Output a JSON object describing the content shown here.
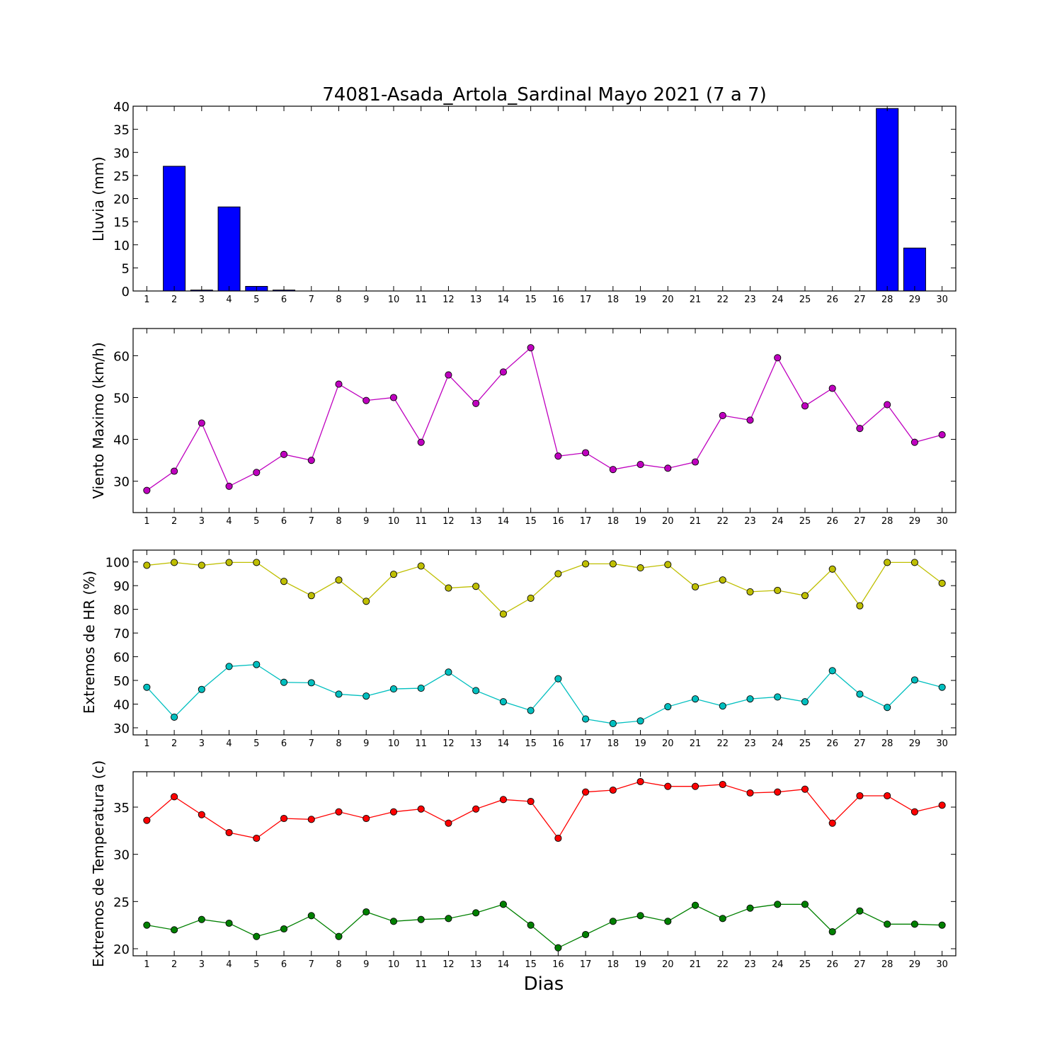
{
  "chart_data": [
    {
      "type": "bar",
      "title": "74081-Asada_Artola_Sardinal Mayo 2021  (7 a 7)",
      "ylabel": "Lluvia (mm)",
      "xlabel": "",
      "x": [
        1,
        2,
        3,
        4,
        5,
        6,
        7,
        8,
        9,
        10,
        11,
        12,
        13,
        14,
        15,
        16,
        17,
        18,
        19,
        20,
        21,
        22,
        23,
        24,
        25,
        26,
        27,
        28,
        29,
        30
      ],
      "ylim": [
        0,
        40
      ],
      "yticks": [
        0,
        5,
        10,
        15,
        20,
        25,
        30,
        35,
        40
      ],
      "grid": false,
      "colors": {
        "bar": "#0000ff",
        "edge": "#000000"
      },
      "series": [
        {
          "values": [
            0,
            27.0,
            0.2,
            18.2,
            1.0,
            0.2,
            0,
            0,
            0,
            0,
            0,
            0,
            0,
            0,
            0,
            0,
            0,
            0,
            0,
            0,
            0,
            0,
            0,
            0,
            0,
            0,
            0,
            39.5,
            9.3,
            0
          ],
          "color": "#0000ff"
        }
      ]
    },
    {
      "type": "line",
      "title": "",
      "ylabel": "Viento Maximo (km/h)",
      "xlabel": "",
      "x": [
        1,
        2,
        3,
        4,
        5,
        6,
        7,
        8,
        9,
        10,
        11,
        12,
        13,
        14,
        15,
        16,
        17,
        18,
        19,
        20,
        21,
        22,
        23,
        24,
        25,
        26,
        27,
        28,
        29,
        30
      ],
      "ylim": [
        22.5,
        66.5
      ],
      "yticks": [
        30,
        40,
        50,
        60
      ],
      "grid": false,
      "series": [
        {
          "values": [
            27.8,
            32.4,
            43.9,
            28.8,
            32.1,
            36.4,
            35.0,
            53.2,
            49.3,
            50.0,
            39.3,
            55.4,
            48.6,
            56.1,
            61.9,
            36.0,
            36.8,
            32.8,
            34.0,
            33.1,
            34.6,
            45.7,
            44.6,
            59.5,
            48.0,
            52.2,
            42.6,
            48.3,
            39.3,
            41.1
          ],
          "color": "#bf00bf"
        }
      ]
    },
    {
      "type": "line",
      "title": "",
      "ylabel": "Extremos de HR (%)",
      "xlabel": "",
      "x": [
        1,
        2,
        3,
        4,
        5,
        6,
        7,
        8,
        9,
        10,
        11,
        12,
        13,
        14,
        15,
        16,
        17,
        18,
        19,
        20,
        21,
        22,
        23,
        24,
        25,
        26,
        27,
        28,
        29,
        30
      ],
      "ylim": [
        27,
        105
      ],
      "yticks": [
        30,
        40,
        50,
        60,
        70,
        80,
        90,
        100
      ],
      "grid": false,
      "series": [
        {
          "values": [
            98.6,
            99.8,
            98.6,
            99.8,
            99.8,
            91.8,
            85.8,
            92.4,
            83.4,
            94.8,
            98.3,
            89.0,
            89.7,
            78.0,
            84.7,
            95.0,
            99.2,
            99.2,
            97.5,
            98.9,
            89.5,
            92.4,
            87.4,
            88.0,
            85.8,
            97.0,
            81.5,
            99.8,
            99.8,
            91.0
          ],
          "color": "#bfbf00"
        },
        {
          "values": [
            47.1,
            34.5,
            46.2,
            55.9,
            56.7,
            49.2,
            49.0,
            44.2,
            43.4,
            46.4,
            46.7,
            53.5,
            45.7,
            41.0,
            37.3,
            50.7,
            33.7,
            31.8,
            32.9,
            38.9,
            42.2,
            39.2,
            42.2,
            43.0,
            41.0,
            54.1,
            44.2,
            38.6,
            50.2,
            47.1
          ],
          "color": "#00bfbf"
        }
      ]
    },
    {
      "type": "line",
      "title": "",
      "ylabel": "Extremos de Temperatura (c)",
      "xlabel": "Dias",
      "x": [
        1,
        2,
        3,
        4,
        5,
        6,
        7,
        8,
        9,
        10,
        11,
        12,
        13,
        14,
        15,
        16,
        17,
        18,
        19,
        20,
        21,
        22,
        23,
        24,
        25,
        26,
        27,
        28,
        29,
        30
      ],
      "ylim": [
        19.25,
        38.75
      ],
      "yticks": [
        20,
        25,
        30,
        35
      ],
      "grid": false,
      "series": [
        {
          "values": [
            33.6,
            36.1,
            34.2,
            32.3,
            31.7,
            33.8,
            33.7,
            34.5,
            33.8,
            34.5,
            34.8,
            33.3,
            34.8,
            35.8,
            35.6,
            31.7,
            36.6,
            36.8,
            37.7,
            37.2,
            37.2,
            37.4,
            36.5,
            36.6,
            36.9,
            33.3,
            36.2,
            36.2,
            34.5,
            35.2
          ],
          "color": "#ff0000"
        },
        {
          "values": [
            22.5,
            22.0,
            23.1,
            22.7,
            21.3,
            22.1,
            23.5,
            21.3,
            23.9,
            22.9,
            23.1,
            23.2,
            23.8,
            24.7,
            22.5,
            20.1,
            21.5,
            22.9,
            23.5,
            22.9,
            24.6,
            23.2,
            24.3,
            24.7,
            24.7,
            21.8,
            24.0,
            22.6,
            22.6,
            22.5
          ],
          "color": "#008000"
        }
      ]
    }
  ]
}
